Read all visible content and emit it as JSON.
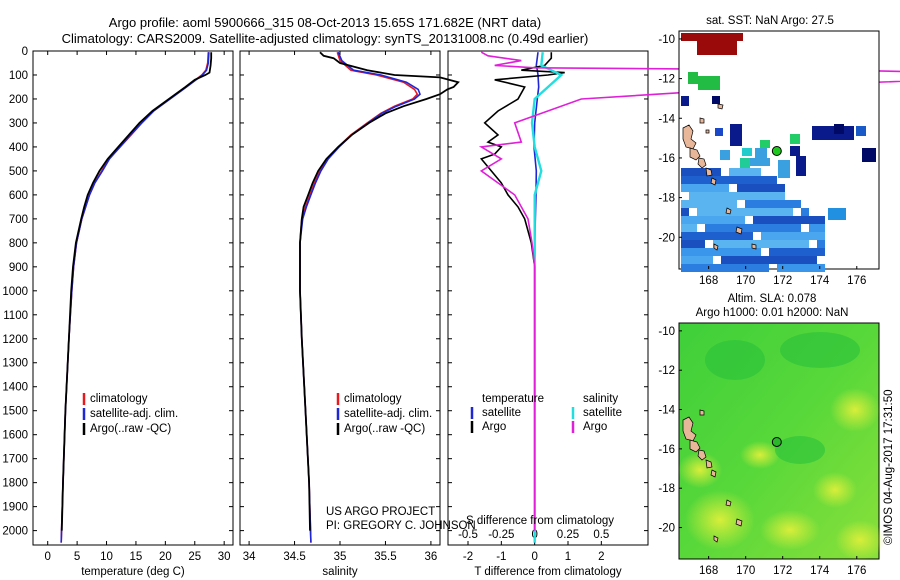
{
  "header": {
    "title_line1": "Argo profile: aoml 5900666_315 08-Oct-2013 15.65S 171.682E (NRT data)",
    "title_line2": "Climatology: CARS2009. Satellite-adjusted climatology: synTS_20131008.nc (0.49d earlier)"
  },
  "colors": {
    "climatology": "#e8191e",
    "satellite": "#1f26d6",
    "argo": "#000000",
    "sal_satellite": "#22dede",
    "sal_argo": "#e020d8"
  },
  "depth_axis": {
    "ticks": [
      0,
      100,
      200,
      300,
      400,
      500,
      600,
      700,
      800,
      900,
      1000,
      1100,
      1200,
      1300,
      1400,
      1500,
      1600,
      1700,
      1800,
      1900,
      2000
    ],
    "ylim": [
      0,
      2060
    ]
  },
  "chart_data": [
    {
      "type": "line",
      "id": "temperature",
      "xlabel": "temperature (deg C)",
      "xlim": [
        -2.5,
        31.5
      ],
      "xticks": [
        0,
        5,
        10,
        15,
        20,
        25,
        30
      ],
      "legend": [
        "climatology",
        "satellite-adj. clim.",
        "Argo(..raw -QC)"
      ],
      "series": [
        {
          "name": "climatology",
          "depth": [
            5,
            50,
            80,
            100,
            150,
            200,
            250,
            300,
            350,
            400,
            450,
            500,
            550,
            600,
            700,
            800,
            900,
            1000,
            1200,
            1500,
            1800,
            2050
          ],
          "values": [
            27.3,
            27.2,
            26.9,
            26.2,
            23.5,
            20.7,
            18.0,
            16.0,
            14.2,
            12.3,
            10.4,
            9.2,
            8.0,
            7.1,
            5.8,
            4.9,
            4.4,
            4.1,
            3.6,
            3.0,
            2.6,
            2.3
          ]
        },
        {
          "name": "satellite-adj. clim.",
          "depth": [
            5,
            50,
            80,
            100,
            150,
            200,
            250,
            300,
            350,
            400,
            450,
            500,
            550,
            600,
            700,
            800,
            900,
            1000,
            1200,
            1500,
            1800,
            2050
          ],
          "values": [
            27.4,
            27.3,
            27.0,
            26.3,
            23.6,
            20.8,
            18.0,
            16.0,
            14.1,
            12.3,
            10.5,
            9.3,
            8.0,
            7.1,
            5.8,
            4.9,
            4.4,
            4.1,
            3.6,
            3.0,
            2.6,
            2.3
          ]
        },
        {
          "name": "Argo(..raw -QC)",
          "depth": [
            5,
            30,
            60,
            90,
            100,
            120,
            150,
            200,
            250,
            300,
            350,
            400,
            450,
            500,
            550,
            600,
            650,
            700,
            800,
            900,
            1000,
            1200,
            1500,
            1800,
            2000
          ],
          "values": [
            27.8,
            27.8,
            27.7,
            27.5,
            26.8,
            25.0,
            23.4,
            20.6,
            17.8,
            15.6,
            13.8,
            12.0,
            10.2,
            8.8,
            7.7,
            6.8,
            6.2,
            5.7,
            4.8,
            4.3,
            4.0,
            3.6,
            3.0,
            2.6,
            2.4
          ]
        }
      ]
    },
    {
      "type": "line",
      "id": "salinity",
      "xlabel": "salinity",
      "xlim": [
        33.9,
        36.1
      ],
      "xticks": [
        34,
        34.5,
        35,
        35.5,
        36
      ],
      "legend": [
        "climatology",
        "satellite-adj. clim.",
        "Argo(..raw -QC)"
      ],
      "annotation": [
        "US ARGO PROJECT",
        "PI: GREGORY C. JOHNSON"
      ],
      "series": [
        {
          "name": "climatology",
          "depth": [
            5,
            40,
            80,
            100,
            130,
            160,
            180,
            200,
            230,
            260,
            300,
            350,
            400,
            450,
            500,
            550,
            600,
            650,
            700,
            800,
            900,
            1000,
            1200,
            1500,
            1800,
            2050
          ],
          "values": [
            34.97,
            35.0,
            35.12,
            35.4,
            35.7,
            35.82,
            35.85,
            35.8,
            35.6,
            35.45,
            35.3,
            35.12,
            34.98,
            34.86,
            34.78,
            34.72,
            34.67,
            34.62,
            34.58,
            34.56,
            34.56,
            34.56,
            34.58,
            34.62,
            34.66,
            34.68
          ]
        },
        {
          "name": "satellite-adj. clim.",
          "depth": [
            5,
            40,
            80,
            100,
            130,
            160,
            180,
            200,
            230,
            260,
            300,
            350,
            400,
            450,
            500,
            550,
            600,
            650,
            700,
            800,
            900,
            1000,
            1200,
            1500,
            1800,
            2050
          ],
          "values": [
            34.98,
            35.02,
            35.15,
            35.45,
            35.73,
            35.86,
            35.88,
            35.82,
            35.62,
            35.46,
            35.31,
            35.13,
            34.99,
            34.87,
            34.79,
            34.73,
            34.68,
            34.63,
            34.59,
            34.56,
            34.56,
            34.56,
            34.58,
            34.62,
            34.66,
            34.68
          ]
        },
        {
          "name": "Argo(..raw -QC)",
          "depth": [
            5,
            20,
            30,
            50,
            80,
            100,
            110,
            130,
            150,
            160,
            180,
            200,
            230,
            260,
            300,
            350,
            400,
            450,
            500,
            550,
            600,
            650,
            700,
            800,
            900,
            1000,
            1200,
            1500,
            1800,
            2000
          ],
          "values": [
            34.78,
            34.82,
            34.93,
            35.0,
            35.3,
            35.6,
            36.1,
            36.3,
            36.25,
            36.18,
            36.1,
            35.95,
            35.7,
            35.5,
            35.32,
            35.13,
            34.98,
            34.85,
            34.76,
            34.7,
            34.65,
            34.6,
            34.58,
            34.56,
            34.56,
            34.56,
            34.58,
            34.62,
            34.66,
            34.67
          ]
        }
      ]
    },
    {
      "type": "line",
      "id": "difference",
      "xlabel": "T difference from climatology",
      "xlabel_top": "S difference from climatology",
      "xlim": [
        -2.6,
        3.4
      ],
      "xticks": [
        -2,
        -1,
        0,
        1,
        2
      ],
      "xticks_top": [
        "-0.5",
        "-0.25",
        "0",
        "0.25",
        "0.5"
      ],
      "legend_temperature": {
        "title": "temperature",
        "entries": [
          "satellite",
          "Argo"
        ]
      },
      "legend_salinity": {
        "title": "salinity",
        "entries": [
          "satellite",
          "Argo"
        ]
      },
      "series": [
        {
          "name": "T satellite",
          "depth": [
            5,
            60,
            80,
            100,
            150,
            200,
            300,
            400,
            500,
            600,
            800,
            1000,
            1500,
            2050
          ],
          "values": [
            0.1,
            0.05,
            0.08,
            0.1,
            0.12,
            0.08,
            0.0,
            -0.02,
            0.05,
            0.04,
            0.0,
            0.0,
            0.0,
            0.0
          ]
        },
        {
          "name": "T Argo",
          "depth": [
            5,
            30,
            60,
            80,
            90,
            100,
            120,
            150,
            200,
            250,
            300,
            350,
            380,
            400,
            430,
            450,
            500,
            550,
            600,
            650,
            700,
            800,
            900,
            1000,
            1500,
            2000
          ],
          "values": [
            0.5,
            0.5,
            0.3,
            -0.4,
            0.9,
            0.4,
            -1.2,
            -0.3,
            -0.5,
            -1.1,
            -1.5,
            -1.1,
            -1.4,
            -1.0,
            -1.2,
            -1.6,
            -1.3,
            -1.0,
            -0.8,
            -0.5,
            -0.3,
            -0.1,
            0.0,
            0.0,
            0.0,
            0.0
          ]
        },
        {
          "name": "S satellite",
          "depth": [
            5,
            60,
            100,
            150,
            200,
            300,
            400,
            500,
            600,
            800,
            1000,
            1500,
            2050
          ],
          "values": [
            0.06,
            0.05,
            0.2,
            0.1,
            0.0,
            -0.02,
            0.0,
            0.05,
            0.0,
            0.0,
            0.0,
            0.0,
            0.0
          ]
        },
        {
          "name": "S Argo",
          "depth": [
            5,
            20,
            40,
            60,
            70,
            80,
            100,
            140,
            170,
            200,
            300,
            380,
            400,
            450,
            500,
            600,
            700,
            800,
            900,
            1000,
            1500,
            2000
          ],
          "values": [
            -0.4,
            -0.35,
            -0.1,
            -0.3,
            0.0,
            2.3,
            4.0,
            2.1,
            1.2,
            0.35,
            -0.15,
            -0.1,
            -0.4,
            -0.25,
            -0.4,
            -0.15,
            -0.05,
            -0.02,
            0.0,
            0.0,
            0.0,
            0.0
          ]
        }
      ]
    },
    {
      "type": "heatmap",
      "id": "sst_map",
      "title": "sat. SST: NaN Argo: 27.5",
      "xticks": [
        168,
        170,
        172,
        174,
        176
      ],
      "yticks": [
        -10,
        -12,
        -14,
        -16,
        -18,
        -20
      ],
      "argo_position": {
        "lon": 171.682,
        "lat": -15.65
      }
    },
    {
      "type": "heatmap",
      "id": "sla_map",
      "title_line1": "Altim. SLA: 0.078",
      "title_line2": "Argo h1000: 0.01 h2000: NaN",
      "xticks": [
        168,
        170,
        172,
        174,
        176
      ],
      "yticks": [
        -10,
        -12,
        -14,
        -16,
        -18,
        -20
      ],
      "argo_position": {
        "lon": 171.682,
        "lat": -15.65
      }
    }
  ],
  "credit": "©IMOS 04-Aug-2017 17:31:50"
}
